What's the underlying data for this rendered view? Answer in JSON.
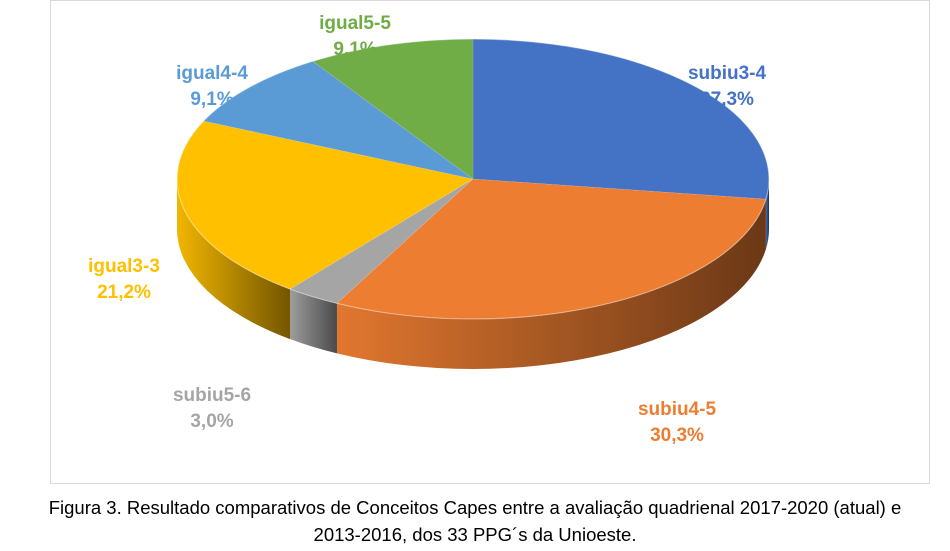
{
  "chart_data": {
    "type": "pie",
    "style": "3d",
    "slices": [
      {
        "name": "subiu3-4",
        "value": 27.3,
        "label": "27,3%",
        "color": "#4472C4"
      },
      {
        "name": "subiu4-5",
        "value": 30.3,
        "label": "30,3%",
        "color": "#ED7D31"
      },
      {
        "name": "subiu5-6",
        "value": 3.0,
        "label": "3,0%",
        "color": "#A5A5A5"
      },
      {
        "name": "igual3-3",
        "value": 21.2,
        "label": "21,2%",
        "color": "#FFC000"
      },
      {
        "name": "igual4-4",
        "value": 9.1,
        "label": "9,1%",
        "color": "#5B9BD5"
      },
      {
        "name": "igual5-5",
        "value": 9.1,
        "label": "9,1%",
        "color": "#70AD47"
      }
    ]
  },
  "caption": {
    "line1": "Figura 3. Resultado comparativos de Conceitos Capes entre a avaliação quadrienal 2017-2020 (atual) e",
    "line2": "2013-2016, dos 33 PPG´s da Unioeste."
  }
}
